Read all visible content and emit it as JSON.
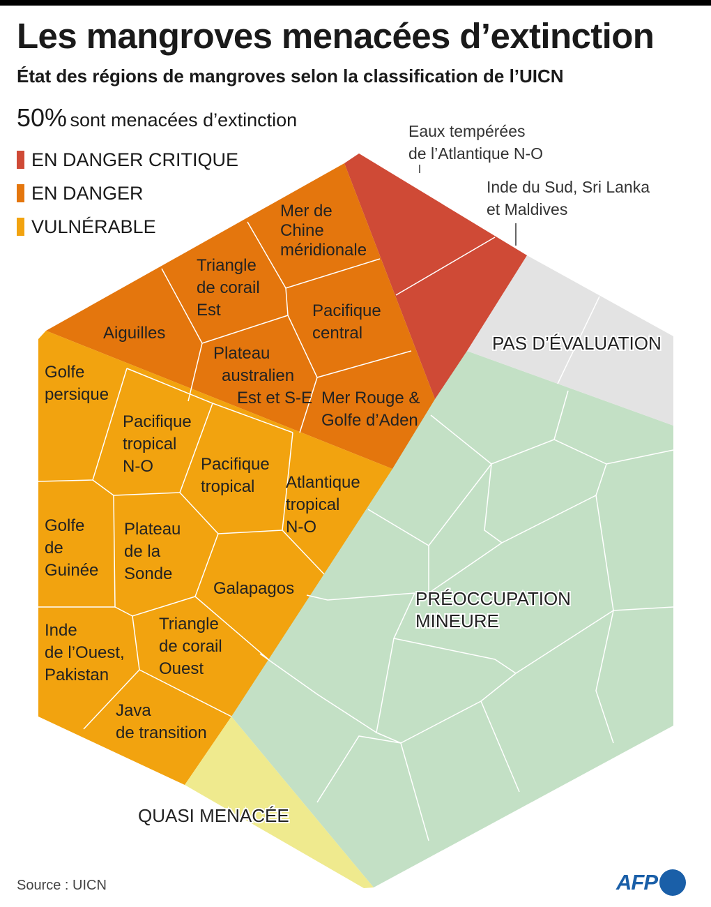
{
  "header": {
    "title": "Les mangroves menacées d’extinction",
    "subtitle": "État des régions de mangroves selon la classification de l’UICN"
  },
  "stat": {
    "value": "50%",
    "text": "sont menacées d’extinction"
  },
  "legend": [
    {
      "label": "EN DANGER CRITIQUE",
      "color": "#cf4a36"
    },
    {
      "label": "EN DANGER",
      "color": "#e4760d"
    },
    {
      "label": "VULNÉRABLE",
      "color": "#f2a30f"
    }
  ],
  "colors": {
    "critical": "#cf4a36",
    "endangered": "#e4760d",
    "vulnerable": "#f2a30f",
    "near_threatened": "#efea8e",
    "least_concern": "#c3e0c5",
    "not_evaluated": "#e3e3e3"
  },
  "categories": {
    "not_evaluated": "PAS D’ÉVALUATION",
    "least_concern": [
      "PRÉOCCUPATION",
      "MINEURE"
    ],
    "near_threatened": "QUASI MENACÉE"
  },
  "callouts": {
    "atlantic": [
      "Eaux tempérées",
      "de l’Atlantique N-O"
    ],
    "india": [
      "Inde du Sud, Sri Lanka",
      "et Maldives"
    ]
  },
  "regions": {
    "endangered": [
      [
        "Mer de",
        "Chine",
        "méridionale"
      ],
      [
        "Triangle",
        "de corail",
        "Est"
      ],
      [
        "Aiguilles"
      ],
      [
        "Pacifique",
        "central"
      ],
      [
        "Plateau",
        "australien",
        "Est et S-E"
      ],
      [
        "Mer Rouge &",
        "Golfe d’Aden"
      ]
    ],
    "vulnerable": [
      [
        "Golfe",
        "persique"
      ],
      [
        "Pacifique",
        "tropical",
        "N-O"
      ],
      [
        "Pacifique",
        "tropical"
      ],
      [
        "Atlantique",
        "tropical",
        "N-O"
      ],
      [
        "Golfe",
        "de",
        "Guinée"
      ],
      [
        "Plateau",
        "de la",
        "Sonde"
      ],
      [
        "Galapagos"
      ],
      [
        "Inde",
        "de l’Ouest,",
        "Pakistan"
      ],
      [
        "Triangle",
        "de corail",
        "Ouest"
      ],
      [
        "Java",
        "de transition"
      ]
    ]
  },
  "footer": {
    "source": "Source : UICN",
    "logo": "AFP"
  }
}
